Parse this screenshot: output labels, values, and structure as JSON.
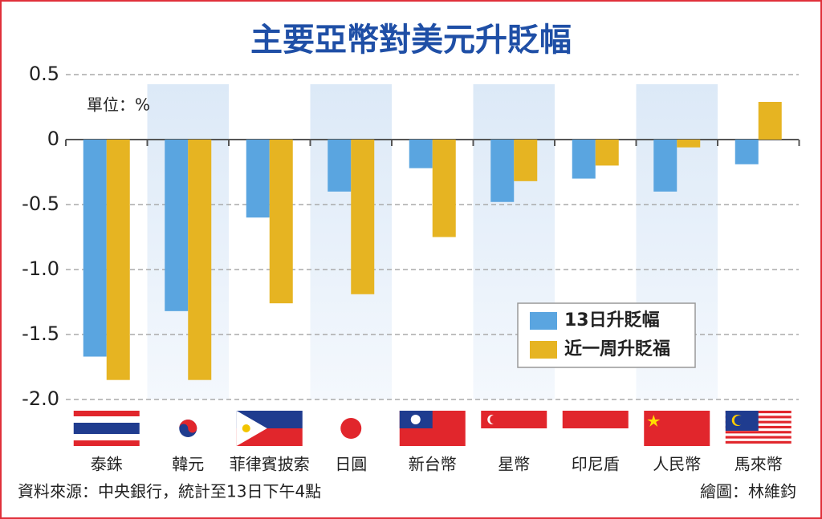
{
  "chart_data": {
    "type": "bar",
    "title": "主要亞幣對美元升貶幅",
    "unit_label": "單位：%",
    "categories": [
      "泰銖",
      "韓元",
      "菲律賓披索",
      "日圓",
      "新台幣",
      "星幣",
      "印尼盾",
      "人民幣",
      "馬來幣"
    ],
    "series": [
      {
        "name": "13日升貶幅",
        "color": "#5aa5e0",
        "values": [
          -1.67,
          -1.32,
          -0.6,
          -0.4,
          -0.22,
          -0.48,
          -0.3,
          -0.4,
          -0.19
        ]
      },
      {
        "name": "近一周升貶福",
        "color": "#e6b422",
        "values": [
          -1.85,
          -1.85,
          -1.26,
          -1.19,
          -0.75,
          -0.32,
          -0.2,
          -0.06,
          0.29
        ]
      }
    ],
    "ylim": [
      -2,
      0.5
    ],
    "yticks": [
      0.5,
      0,
      -0.5,
      {
        "value": -1,
        "label": "-1.0"
      },
      -1.5,
      {
        "value": -2,
        "label": "-2.0"
      }
    ],
    "grid": true,
    "source": "資料來源：中央銀行，統計至13日下午4點",
    "credit": "繪圖：林維鈞"
  }
}
